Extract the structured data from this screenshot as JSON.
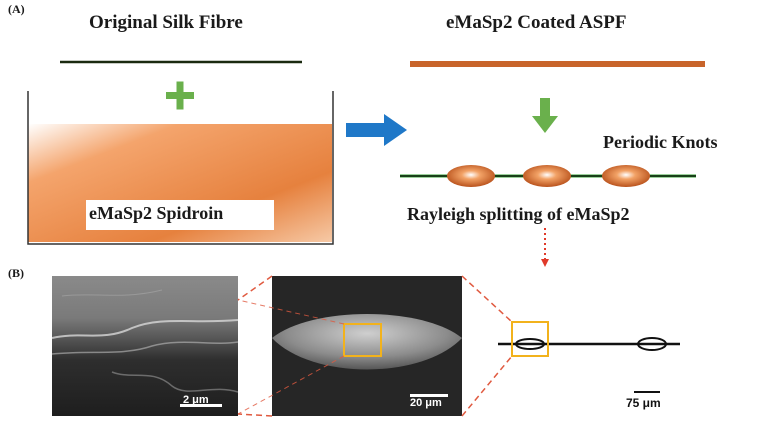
{
  "panel_a": {
    "label": "(A)",
    "original_title": "Original Silk Fibre",
    "coated_title": "eMaSp2 Coated ASPF",
    "bath_label": "eMaSp2 Spidroin",
    "knots_label": "Periodic Knots",
    "splitting_label": "Rayleigh splitting of eMaSp2",
    "plus_symbol": "+"
  },
  "panel_b": {
    "label": "(B)",
    "scale_bars": [
      "2 μm",
      "20 μm",
      "75 μm"
    ]
  },
  "colors": {
    "fibre_green": "#8bd46a",
    "orange": "#e07a36",
    "coated_orange": "#c8642a",
    "blue_arrow": "#1f78c8",
    "green_arrow": "#6ab04c",
    "box_yellow": "#f2b21c",
    "dash_red": "#e05a40"
  }
}
